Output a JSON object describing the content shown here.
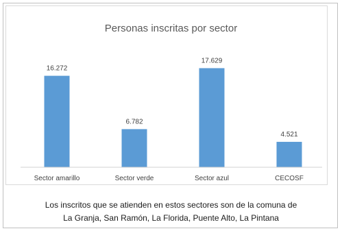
{
  "chart_data": {
    "type": "bar",
    "title": "Personas inscritas por sector",
    "categories": [
      "Sector amarillo",
      "Sector verde",
      "Sector azul",
      "CECOSF"
    ],
    "values": [
      16272,
      6782,
      17629,
      4521
    ],
    "value_labels": [
      "16.272",
      "6.782",
      "17.629",
      "4.521"
    ],
    "bar_color": "#5b9bd5",
    "ylim": [
      0,
      20000
    ],
    "grid": false,
    "legend": "none"
  },
  "note": {
    "line1": "Los inscritos que se atienden en estos sectores son de la comuna de",
    "line2": "La Granja, San Ramón, La Florida, Puente Alto, La Pintana"
  }
}
